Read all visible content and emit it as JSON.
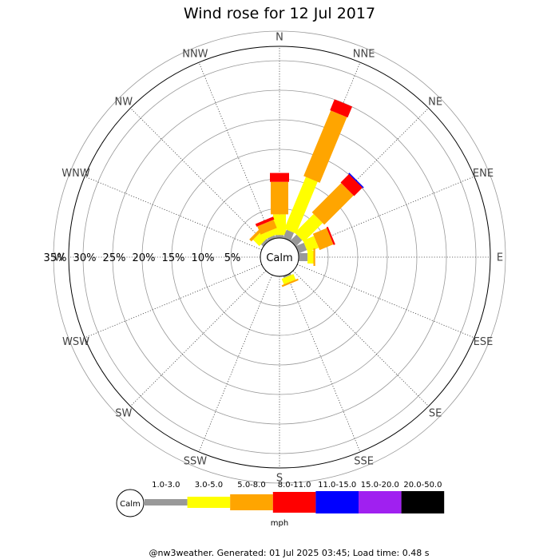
{
  "title": "Wind rose for 12 Jul 2017",
  "footer": "@nw3weather. Generated: 01 Jul 2025 03:45; Load time: 0.48 s",
  "calm_label": "Calm",
  "chart_data": {
    "type": "wind-rose",
    "unit": "mph",
    "directions": [
      "N",
      "NNE",
      "NE",
      "ENE",
      "E",
      "ESE",
      "SE",
      "SSE",
      "S",
      "SSW",
      "SW",
      "WSW",
      "W",
      "WNW",
      "NW",
      "NNW"
    ],
    "ring_labels": [
      "5%",
      "10%",
      "15%",
      "20%",
      "25%",
      "30%",
      "35%"
    ],
    "ring_values": [
      5,
      10,
      15,
      20,
      25,
      30,
      35
    ],
    "speed_bins": [
      {
        "label": "1.0-3.0",
        "color": "#999999"
      },
      {
        "label": "3.0-5.0",
        "color": "#ffff00"
      },
      {
        "label": "5.0-8.0",
        "color": "#ffa500"
      },
      {
        "label": "8.0-11.0",
        "color": "#ff0000"
      },
      {
        "label": "11.0-15.0",
        "color": "#0000ff"
      },
      {
        "label": "15.0-20.0",
        "color": "#a020f0"
      },
      {
        "label": "20.0-50.0",
        "color": "#000000"
      }
    ],
    "series": [
      {
        "direction": "N",
        "values": [
          0.5,
          3.5,
          5.5,
          1.5,
          0,
          0,
          0
        ]
      },
      {
        "direction": "NNE",
        "values": [
          1.5,
          9.5,
          12.0,
          2.0,
          0,
          0,
          0
        ]
      },
      {
        "direction": "NE",
        "values": [
          1.5,
          4.5,
          7.0,
          2.0,
          0.2,
          0,
          0
        ]
      },
      {
        "direction": "ENE",
        "values": [
          1.5,
          2.0,
          2.5,
          0.3,
          0,
          0,
          0
        ]
      },
      {
        "direction": "E",
        "values": [
          1.5,
          1.0,
          0.3,
          0,
          0,
          0,
          0
        ]
      },
      {
        "direction": "ESE",
        "values": [
          0,
          0,
          0,
          0,
          0,
          0,
          0
        ]
      },
      {
        "direction": "SE",
        "values": [
          0,
          0,
          0,
          0,
          0,
          0,
          0
        ]
      },
      {
        "direction": "SSE",
        "values": [
          0.3,
          1.0,
          0.3,
          0,
          0,
          0,
          0
        ]
      },
      {
        "direction": "S",
        "values": [
          0,
          0,
          0,
          0,
          0,
          0,
          0
        ]
      },
      {
        "direction": "SSW",
        "values": [
          0,
          0,
          0,
          0,
          0,
          0,
          0
        ]
      },
      {
        "direction": "SW",
        "values": [
          0,
          0,
          0,
          0,
          0,
          0,
          0
        ]
      },
      {
        "direction": "WSW",
        "values": [
          0,
          0,
          0,
          0,
          0,
          0,
          0
        ]
      },
      {
        "direction": "W",
        "values": [
          0,
          0,
          0,
          0,
          0,
          0,
          0
        ]
      },
      {
        "direction": "WNW",
        "values": [
          0,
          0,
          0,
          0,
          0,
          0,
          0
        ]
      },
      {
        "direction": "NW",
        "values": [
          0.5,
          1.5,
          0.5,
          0,
          0,
          0,
          0
        ]
      },
      {
        "direction": "NNW",
        "values": [
          0.5,
          1.0,
          1.5,
          0.5,
          0,
          0,
          0
        ]
      }
    ]
  }
}
